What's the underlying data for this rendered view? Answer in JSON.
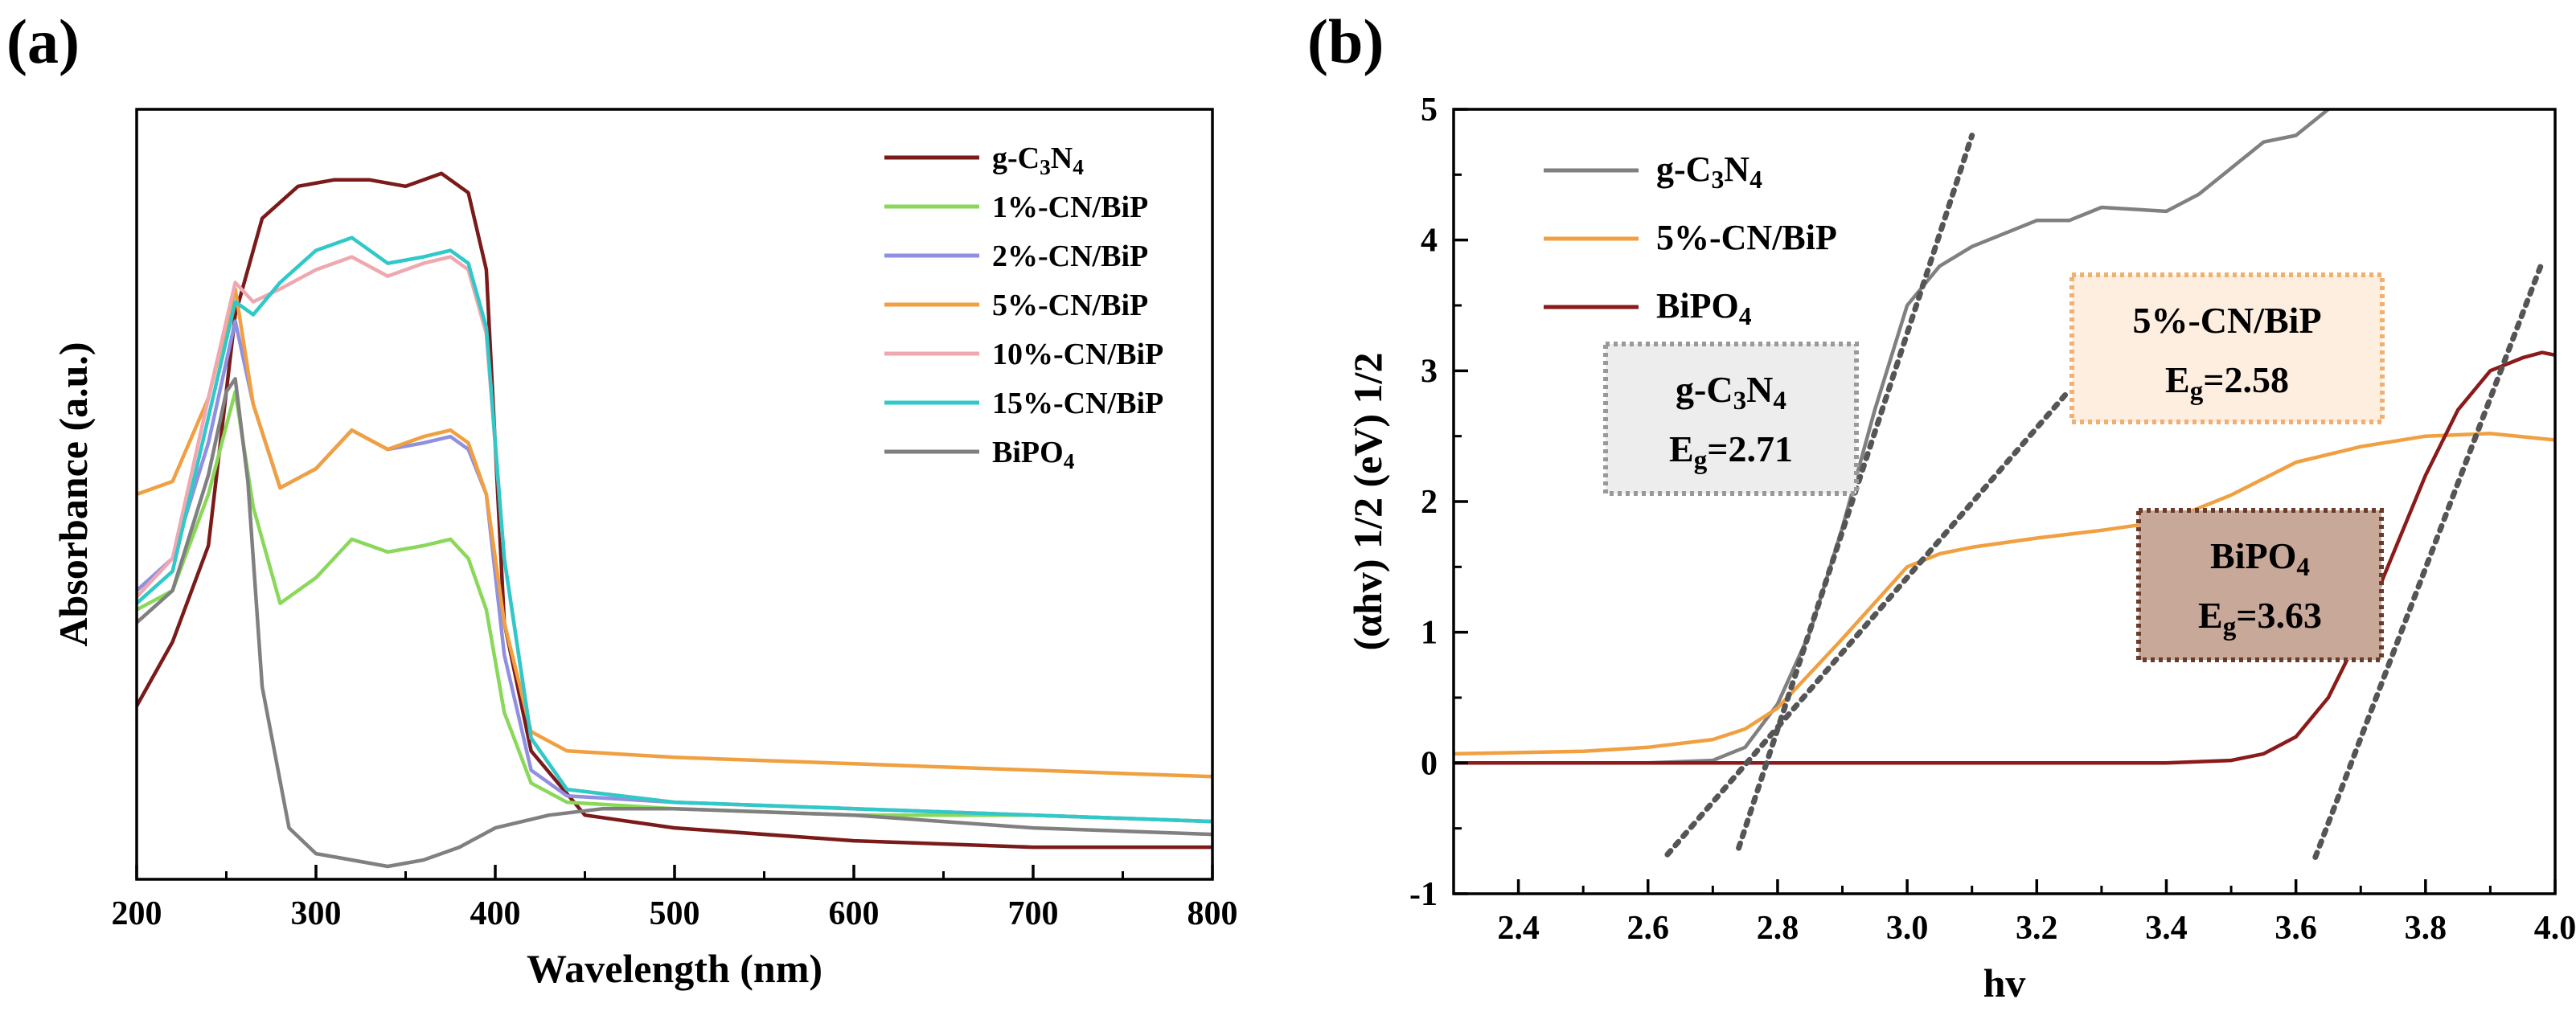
{
  "chart_data": [
    {
      "panel_label": "(a)",
      "type": "line",
      "xlabel": "Wavelength (nm)",
      "ylabel": "Absorbance (a.u.)",
      "xlim": [
        200,
        800
      ],
      "ylim": [
        0,
        1.2
      ],
      "x_ticks": [
        "200",
        "300",
        "400",
        "500",
        "600",
        "700",
        "800"
      ],
      "y_ticks_labeled": false,
      "legend_position": "top-right",
      "series": [
        {
          "name": "g-C3N4",
          "color": "#7b1a1a",
          "x": [
            200,
            220,
            240,
            255,
            270,
            290,
            310,
            330,
            350,
            370,
            385,
            395,
            405,
            420,
            450,
            500,
            600,
            700,
            800
          ],
          "values": [
            0.27,
            0.37,
            0.52,
            0.88,
            1.03,
            1.08,
            1.09,
            1.09,
            1.08,
            1.1,
            1.07,
            0.95,
            0.4,
            0.2,
            0.1,
            0.08,
            0.06,
            0.05,
            0.05
          ]
        },
        {
          "name": "1%-CN/BiP",
          "color": "#8ad85a",
          "x": [
            200,
            220,
            240,
            255,
            265,
            280,
            300,
            320,
            340,
            360,
            375,
            385,
            395,
            405,
            420,
            440,
            500,
            600,
            700,
            800
          ],
          "values": [
            0.42,
            0.45,
            0.6,
            0.76,
            0.58,
            0.43,
            0.47,
            0.53,
            0.51,
            0.52,
            0.53,
            0.5,
            0.42,
            0.26,
            0.15,
            0.12,
            0.11,
            0.1,
            0.1,
            0.09
          ]
        },
        {
          "name": "2%-CN/BiP",
          "color": "#9090e0",
          "x": [
            200,
            220,
            240,
            255,
            265,
            280,
            300,
            320,
            340,
            360,
            375,
            385,
            395,
            405,
            420,
            440,
            500,
            600,
            700,
            800
          ],
          "values": [
            0.45,
            0.5,
            0.68,
            0.87,
            0.74,
            0.61,
            0.64,
            0.7,
            0.67,
            0.68,
            0.69,
            0.67,
            0.6,
            0.35,
            0.17,
            0.13,
            0.12,
            0.11,
            0.1,
            0.09
          ]
        },
        {
          "name": "5%-CN/BiP",
          "color": "#f0a040",
          "x": [
            200,
            220,
            240,
            255,
            265,
            280,
            300,
            320,
            340,
            360,
            375,
            385,
            395,
            405,
            420,
            440,
            500,
            600,
            700,
            800
          ],
          "values": [
            0.6,
            0.62,
            0.75,
            0.92,
            0.74,
            0.61,
            0.64,
            0.7,
            0.67,
            0.69,
            0.7,
            0.68,
            0.6,
            0.4,
            0.23,
            0.2,
            0.19,
            0.18,
            0.17,
            0.16
          ]
        },
        {
          "name": "10%-CN/BiP",
          "color": "#f0a8b0",
          "x": [
            200,
            220,
            240,
            255,
            265,
            280,
            300,
            320,
            340,
            360,
            375,
            385,
            395,
            405,
            420,
            440,
            500,
            600,
            700,
            800
          ],
          "values": [
            0.44,
            0.5,
            0.75,
            0.93,
            0.9,
            0.92,
            0.95,
            0.97,
            0.94,
            0.96,
            0.97,
            0.95,
            0.85,
            0.5,
            0.22,
            0.14,
            0.12,
            0.11,
            0.1,
            0.09
          ]
        },
        {
          "name": "15%-CN/BiP",
          "color": "#30c8c8",
          "x": [
            200,
            220,
            240,
            255,
            265,
            280,
            300,
            320,
            340,
            360,
            375,
            385,
            395,
            405,
            420,
            440,
            500,
            600,
            700,
            800
          ],
          "values": [
            0.43,
            0.48,
            0.72,
            0.9,
            0.88,
            0.93,
            0.98,
            1.0,
            0.96,
            0.97,
            0.98,
            0.96,
            0.86,
            0.5,
            0.22,
            0.14,
            0.12,
            0.11,
            0.1,
            0.09
          ]
        },
        {
          "name": "BiPO4",
          "color": "#808080",
          "x": [
            200,
            220,
            240,
            250,
            255,
            262,
            270,
            285,
            300,
            320,
            340,
            360,
            380,
            400,
            430,
            460,
            500,
            600,
            700,
            800
          ],
          "values": [
            0.4,
            0.45,
            0.63,
            0.76,
            0.78,
            0.62,
            0.3,
            0.08,
            0.04,
            0.03,
            0.02,
            0.03,
            0.05,
            0.08,
            0.1,
            0.11,
            0.11,
            0.1,
            0.08,
            0.07
          ]
        }
      ],
      "legend": [
        {
          "label": "g-C",
          "sub1": "3",
          "mid": "N",
          "sub2": "4"
        },
        {
          "label": "1%-CN/BiP"
        },
        {
          "label": "2%-CN/BiP"
        },
        {
          "label": "5%-CN/BiP"
        },
        {
          "label": "10%-CN/BiP"
        },
        {
          "label": "15%-CN/BiP"
        },
        {
          "label": "BiPO",
          "sub1": "4"
        }
      ]
    },
    {
      "panel_label": "(b)",
      "type": "line",
      "xlabel": "hv",
      "ylabel": "(αhv) 1/2 (eV) 1/2",
      "xlim": [
        2.3,
        4.0
      ],
      "ylim": [
        -1,
        5
      ],
      "x_ticks": [
        "2.4",
        "2.6",
        "2.8",
        "3.0",
        "3.2",
        "3.4",
        "3.6",
        "3.8",
        "4.0"
      ],
      "y_ticks": [
        "-1",
        "0",
        "1",
        "2",
        "3",
        "4",
        "5"
      ],
      "legend_position": "top-left",
      "series": [
        {
          "name": "g-C3N4",
          "color": "#808080",
          "x": [
            2.3,
            2.6,
            2.7,
            2.75,
            2.8,
            2.85,
            2.9,
            2.95,
            3.0,
            3.05,
            3.1,
            3.2,
            3.25,
            3.3,
            3.4,
            3.45,
            3.5,
            3.55,
            3.6,
            3.65
          ],
          "values": [
            0.0,
            0.0,
            0.02,
            0.12,
            0.45,
            1.0,
            1.8,
            2.7,
            3.5,
            3.8,
            3.95,
            4.15,
            4.15,
            4.25,
            4.22,
            4.35,
            4.55,
            4.75,
            4.8,
            5.0
          ]
        },
        {
          "name": "5%-CN/BiP",
          "color": "#f0a040",
          "x": [
            2.3,
            2.5,
            2.6,
            2.7,
            2.75,
            2.8,
            2.9,
            3.0,
            3.05,
            3.1,
            3.2,
            3.3,
            3.4,
            3.5,
            3.6,
            3.7,
            3.8,
            3.9,
            4.0
          ],
          "values": [
            0.07,
            0.09,
            0.12,
            0.18,
            0.26,
            0.42,
            0.95,
            1.5,
            1.6,
            1.65,
            1.72,
            1.78,
            1.85,
            2.05,
            2.3,
            2.42,
            2.5,
            2.52,
            2.47
          ]
        },
        {
          "name": "BiPO4",
          "color": "#8b1a1a",
          "x": [
            2.3,
            3.0,
            3.4,
            3.5,
            3.55,
            3.6,
            3.65,
            3.7,
            3.75,
            3.8,
            3.85,
            3.9,
            3.95,
            3.98,
            4.0
          ],
          "values": [
            0.0,
            0.0,
            0.0,
            0.02,
            0.07,
            0.2,
            0.5,
            1.0,
            1.6,
            2.2,
            2.7,
            3.0,
            3.1,
            3.14,
            3.12
          ]
        }
      ],
      "tangent_lines": [
        {
          "x": [
            2.74,
            3.1
          ],
          "values": [
            -0.65,
            4.8
          ]
        },
        {
          "x": [
            2.63,
            3.25
          ],
          "values": [
            -0.7,
            2.85
          ]
        },
        {
          "x": [
            3.63,
            3.98
          ],
          "values": [
            -0.72,
            3.83
          ]
        }
      ],
      "legend": [
        {
          "label": "g-C",
          "sub1": "3",
          "mid": "N",
          "sub2": "4"
        },
        {
          "label": "5%-CN/BiP"
        },
        {
          "label": "BiPO",
          "sub1": "4"
        }
      ],
      "annotations": [
        {
          "line1": {
            "label": "g-C",
            "sub1": "3",
            "mid": "N",
            "sub2": "4"
          },
          "line2": {
            "pre": "E",
            "sub": "g",
            "post": "=2.71"
          },
          "fill": "#ededed",
          "border": "#999999"
        },
        {
          "line1": {
            "label": "5%-CN/BiP"
          },
          "line2": {
            "pre": "E",
            "sub": "g",
            "post": "=2.58"
          },
          "fill": "#fdeee0",
          "border": "#f0b070"
        },
        {
          "line1": {
            "label": "BiPO",
            "sub1": "4"
          },
          "line2": {
            "pre": "E",
            "sub": "g",
            "post": "=3.63"
          },
          "fill": "#c8a898",
          "border": "#6a3a2a"
        }
      ]
    }
  ]
}
